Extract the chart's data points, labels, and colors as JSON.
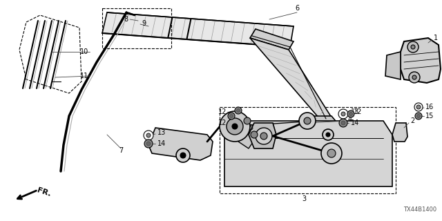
{
  "background_color": "#ffffff",
  "diagram_code": "TX44B1400",
  "fig_width": 6.4,
  "fig_height": 3.2,
  "dpi": 100,
  "text_color": "#000000",
  "line_color": "#000000",
  "part_fontsize": 7,
  "hatch_color": "#888888",
  "gray_light": "#cccccc",
  "gray_mid": "#aaaaaa",
  "gray_dark": "#666666"
}
